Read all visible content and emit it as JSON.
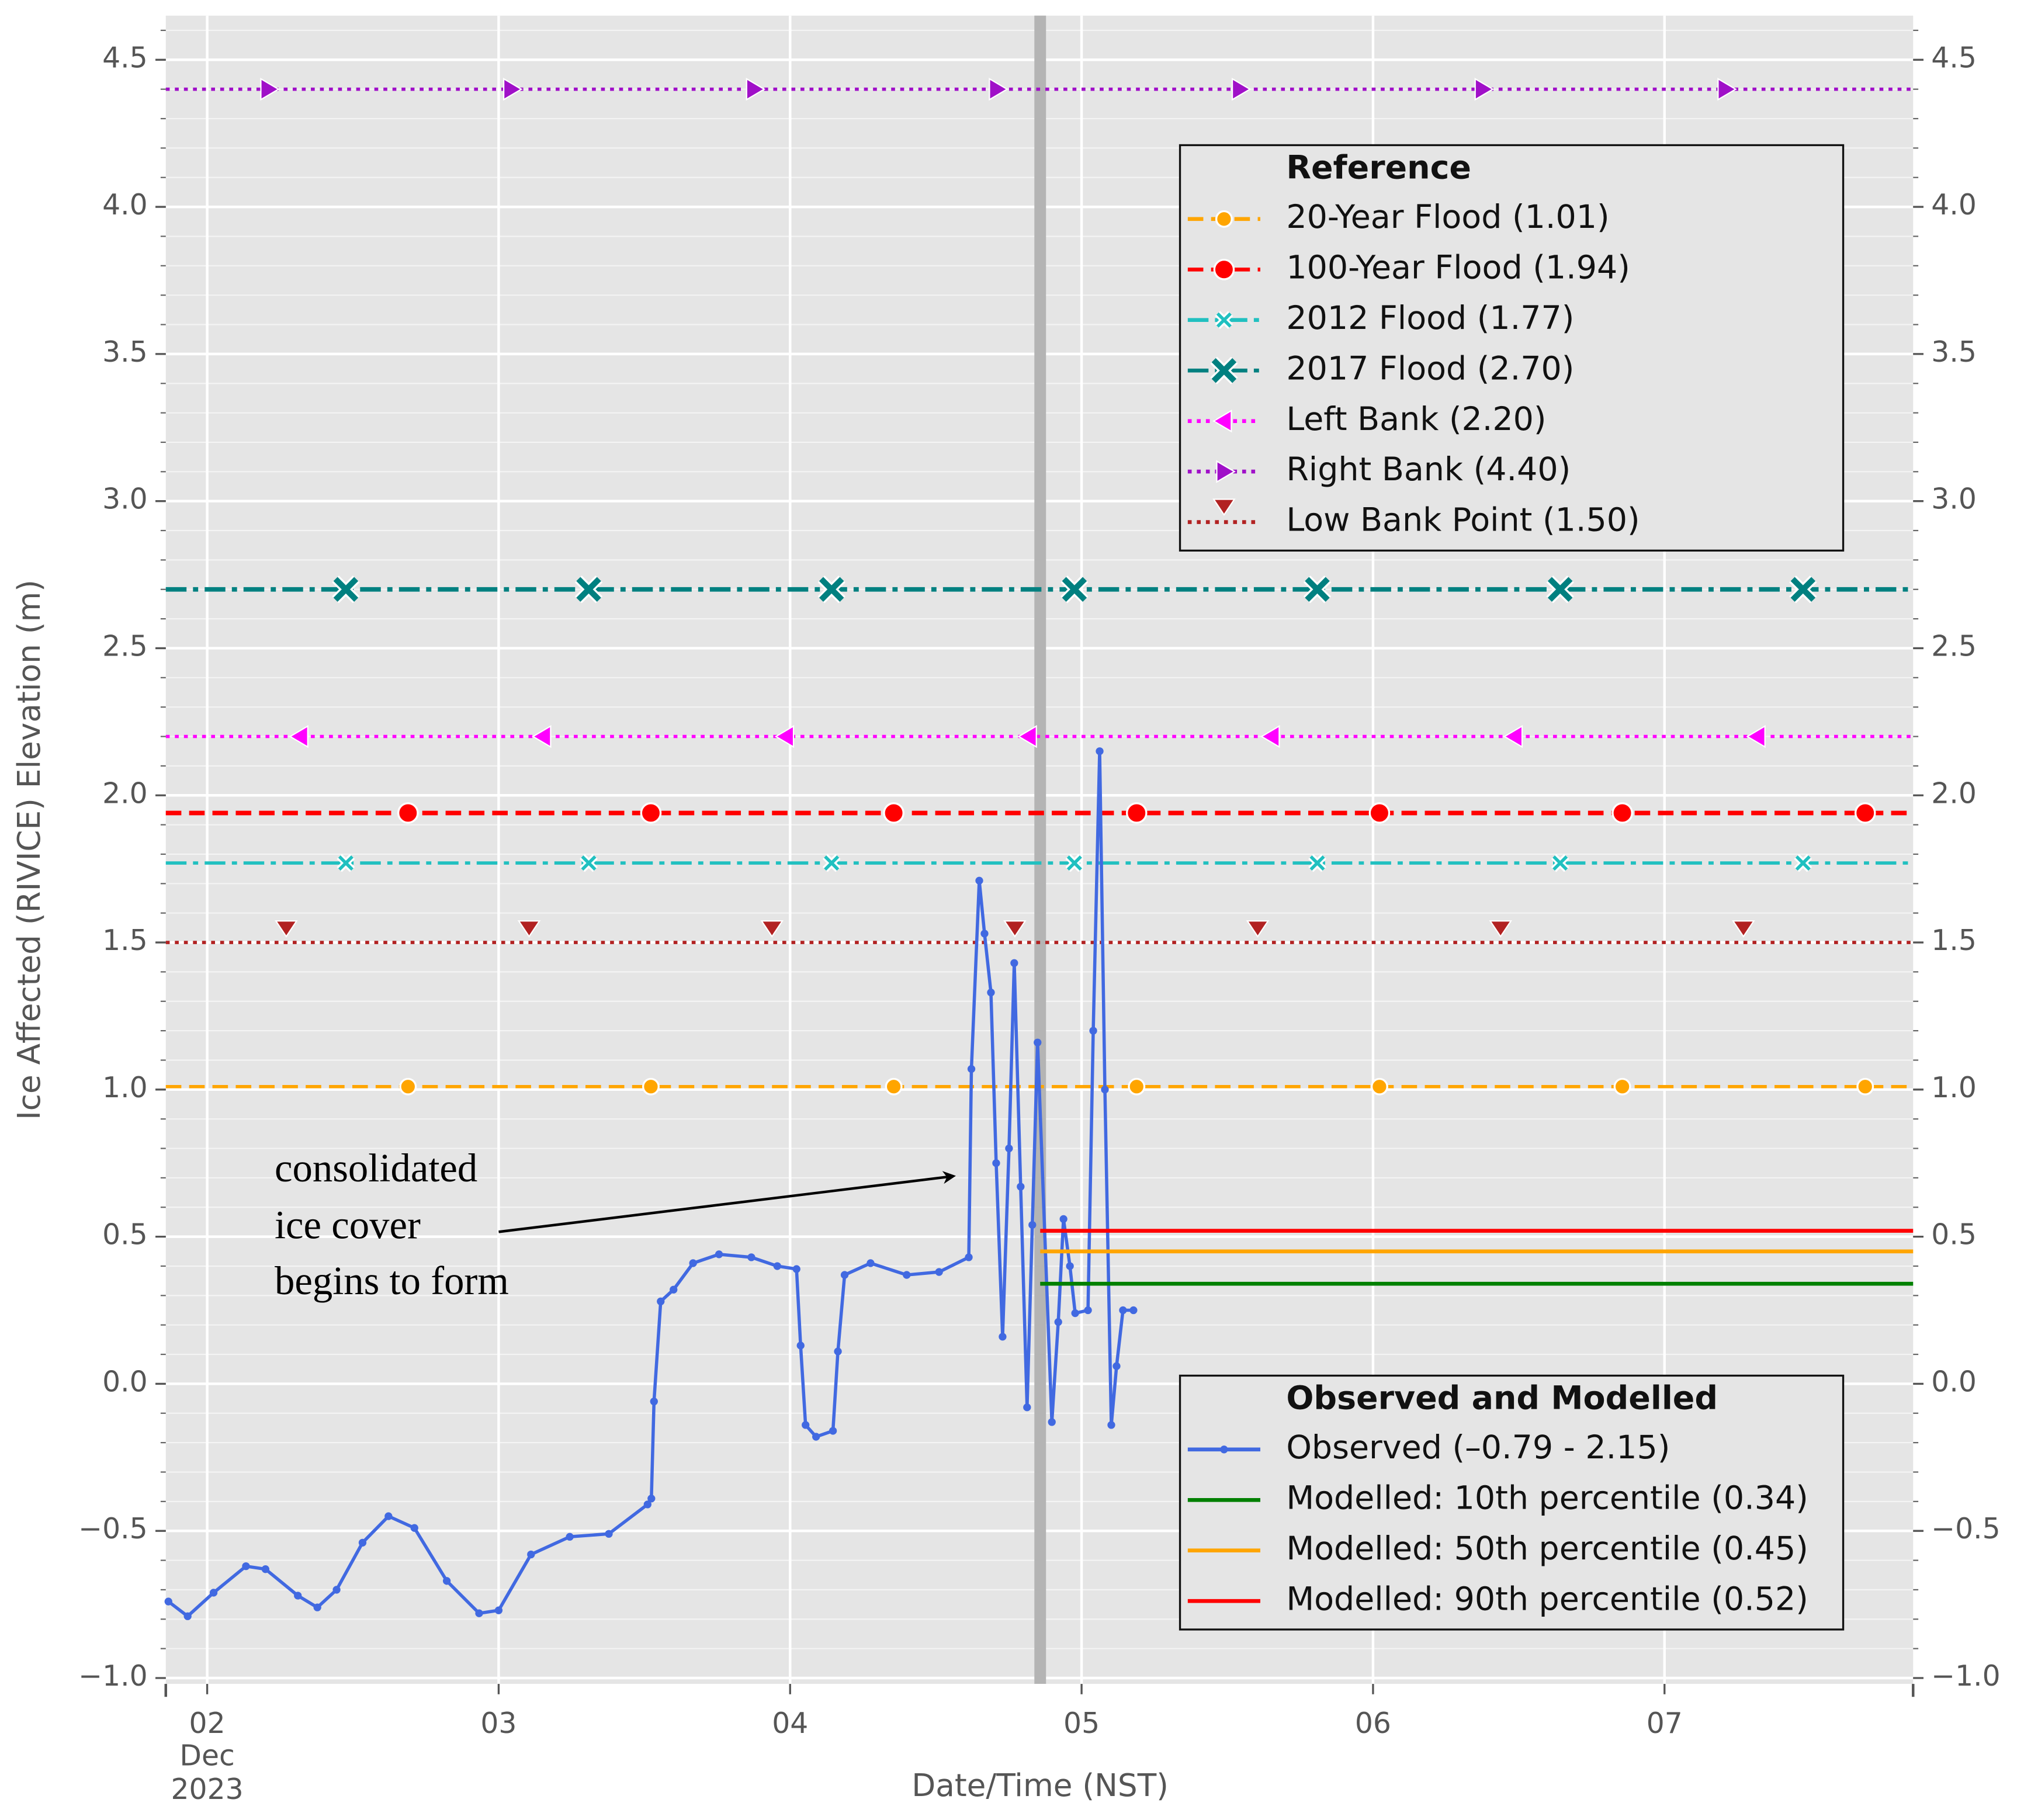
{
  "chart_data": {
    "type": "line",
    "xlabel": "Date/Time (NST)",
    "ylabel": "Ice Affected (RIVICE) Elevation (m)",
    "xlim": [
      1.858,
      7.853
    ],
    "xticks": [
      {
        "value": 2,
        "label": "02"
      },
      {
        "value": 3,
        "label": "03"
      },
      {
        "value": 4,
        "label": "04"
      },
      {
        "value": 5,
        "label": "05"
      },
      {
        "value": 6,
        "label": "06"
      },
      {
        "value": 7,
        "label": "07"
      }
    ],
    "xtick_sublabel": [
      "Dec",
      "2023"
    ],
    "ylim": [
      -1.02,
      4.65
    ],
    "yticks": [
      {
        "value": -1.0,
        "label": "−1.0"
      },
      {
        "value": -0.5,
        "label": "−0.5"
      },
      {
        "value": 0,
        "label": "0.0"
      },
      0.5,
      {
        "value": 1,
        "label": "1.0"
      },
      1.5,
      {
        "value": 2,
        "label": "2.0"
      },
      2.5,
      {
        "value": 3,
        "label": "3.0"
      },
      3.5,
      {
        "value": 4,
        "label": "4.0"
      },
      4.5
    ],
    "grid": true,
    "minor_ygrid_step": 0.1,
    "vline_x": 4.858,
    "vline_color": "#b4b4b4",
    "annotation": [
      "consolidated",
      "ice cover",
      "begins to form"
    ],
    "reference_title": "Reference",
    "reference_legend_loc": "upper right",
    "reference_lines": [
      {
        "name": "20-Year Flood (1.01)",
        "value": 1.01,
        "color": "#ffa500",
        "linestyle": "dashed",
        "marker": "circle"
      },
      {
        "name": "100-Year Flood (1.94)",
        "value": 1.94,
        "color": "#ff0000",
        "linestyle": "dashed",
        "marker": "big-circle"
      },
      {
        "name": "2012 Flood (1.77)",
        "value": 1.77,
        "color": "#20c0c0",
        "linestyle": "dashdot",
        "marker": "x"
      },
      {
        "name": "2017 Flood (2.70)",
        "value": 2.7,
        "color": "#008080",
        "linestyle": "dashdot",
        "marker": "big-x"
      },
      {
        "name": "Left Bank (2.20)",
        "value": 2.2,
        "color": "#ff00ff",
        "linestyle": "dotted",
        "marker": "triangle-left"
      },
      {
        "name": "Right Bank (4.40)",
        "value": 4.4,
        "color": "#a010c8",
        "linestyle": "dotted",
        "marker": "triangle-right"
      },
      {
        "name": "Low Bank Point (1.50)",
        "value": 1.5,
        "color": "#b22222",
        "linestyle": "dotted",
        "marker": "triangle-down"
      }
    ],
    "series_title": "Observed and Modelled",
    "series_legend_loc": "lower right",
    "series": [
      {
        "name": "Observed (–0.79 - 2.15)",
        "color": "#4169e1",
        "marker": "dot",
        "x": [
          1.867,
          1.933,
          2.022,
          2.133,
          2.2,
          2.311,
          2.378,
          2.444,
          2.533,
          2.622,
          2.711,
          2.822,
          2.933,
          3.0,
          3.111,
          3.244,
          3.378,
          3.511,
          3.524,
          3.533,
          3.556,
          3.6,
          3.667,
          3.756,
          3.867,
          3.956,
          4.022,
          4.036,
          4.053,
          4.089,
          4.147,
          4.164,
          4.187,
          4.276,
          4.4,
          4.511,
          4.613,
          4.622,
          4.649,
          4.667,
          4.689,
          4.707,
          4.729,
          4.751,
          4.769,
          4.791,
          4.813,
          4.831,
          4.849,
          4.898,
          4.92,
          4.938,
          4.96,
          4.978,
          5.022,
          5.04,
          5.062,
          5.08,
          5.102,
          5.12,
          5.142,
          5.178
        ],
        "values": [
          -0.74,
          -0.79,
          -0.71,
          -0.62,
          -0.63,
          -0.72,
          -0.76,
          -0.7,
          -0.54,
          -0.45,
          -0.49,
          -0.67,
          -0.78,
          -0.77,
          -0.58,
          -0.52,
          -0.51,
          -0.41,
          -0.39,
          -0.06,
          0.28,
          0.32,
          0.41,
          0.44,
          0.43,
          0.4,
          0.39,
          0.13,
          -0.14,
          -0.18,
          -0.16,
          0.11,
          0.37,
          0.41,
          0.37,
          0.38,
          0.43,
          1.07,
          1.71,
          1.53,
          1.33,
          0.75,
          0.16,
          0.8,
          1.43,
          0.67,
          -0.08,
          0.54,
          1.16,
          -0.13,
          0.21,
          0.56,
          0.4,
          0.24,
          0.25,
          1.2,
          2.15,
          1.0,
          -0.14,
          0.06,
          0.25,
          0.25
        ]
      },
      {
        "name": "Modelled: 10th percentile (0.34)",
        "color": "#008000",
        "x": [
          4.858,
          7.853
        ],
        "values": [
          0.34,
          0.34
        ]
      },
      {
        "name": "Modelled: 50th percentile (0.45)",
        "color": "#ffa500",
        "x": [
          4.858,
          7.853
        ],
        "values": [
          0.45,
          0.45
        ]
      },
      {
        "name": "Modelled: 90th percentile (0.52)",
        "color": "#ff0000",
        "x": [
          4.858,
          7.853
        ],
        "values": [
          0.52,
          0.52
        ]
      }
    ]
  }
}
